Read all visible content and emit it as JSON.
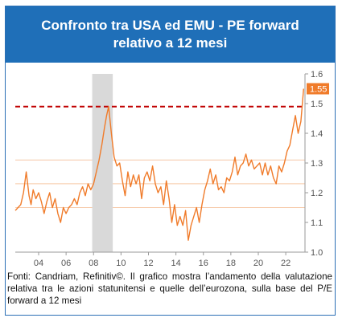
{
  "header": {
    "title": "Confronto tra USA ed EMU - PE forward relativo a 12 mesi"
  },
  "caption": "Fonti: Candriam, Refinitiv©. Il grafico mostra l’andamento della valutazione relativa tra le azioni statunitensi e quelle dell’eurozona, sulla base del P/E forward a 12 mesi",
  "colors": {
    "header_bg": "#1f6fb8",
    "line": "#f07b2a",
    "reference": "#c00000",
    "badge": "#f07b2a",
    "recession_band": "#d9d9d9",
    "bands": "#f6c9a8"
  },
  "chart_data": {
    "type": "line",
    "title": "",
    "xlabel": "",
    "ylabel": "",
    "xlim": [
      2002.3,
      2023.4
    ],
    "ylim": [
      1.0,
      1.6
    ],
    "y_ticks": [
      "1.0",
      "1.1",
      "1.2",
      "1.3",
      "1.4",
      "1.5",
      "1.6"
    ],
    "x_ticks": [
      "04",
      "06",
      "08",
      "10",
      "12",
      "14",
      "16",
      "18",
      "20",
      "22"
    ],
    "x_tick_years": [
      2004,
      2006,
      2008,
      2010,
      2012,
      2014,
      2016,
      2018,
      2020,
      2022
    ],
    "last_value_label": "1.55",
    "reference_line": {
      "value": 1.49,
      "style": "dashed"
    },
    "horizontal_bands": [
      1.15,
      1.23,
      1.31
    ],
    "shaded_period": [
      2007.9,
      2009.4
    ],
    "series": [
      {
        "x": [
          2002.3,
          2002.5,
          2002.7,
          2002.9,
          2003.1,
          2003.3,
          2003.45,
          2003.6,
          2003.8,
          2004.0,
          2004.2,
          2004.4,
          2004.6,
          2004.8,
          2005.0,
          2005.2,
          2005.4,
          2005.6,
          2005.8,
          2006.0,
          2006.2,
          2006.4,
          2006.6,
          2006.8,
          2007.0,
          2007.2,
          2007.4,
          2007.6,
          2007.8,
          2008.0,
          2008.2,
          2008.4,
          2008.6,
          2008.8,
          2008.95,
          2009.1,
          2009.3,
          2009.5,
          2009.7,
          2009.9,
          2010.1,
          2010.3,
          2010.5,
          2010.7,
          2010.9,
          2011.1,
          2011.3,
          2011.5,
          2011.7,
          2011.9,
          2012.1,
          2012.3,
          2012.5,
          2012.7,
          2012.9,
          2013.1,
          2013.3,
          2013.5,
          2013.7,
          2013.9,
          2014.1,
          2014.3,
          2014.5,
          2014.7,
          2014.9,
          2015.1,
          2015.3,
          2015.5,
          2015.7,
          2015.9,
          2016.1,
          2016.3,
          2016.5,
          2016.7,
          2016.9,
          2017.1,
          2017.3,
          2017.5,
          2017.7,
          2017.9,
          2018.1,
          2018.3,
          2018.5,
          2018.7,
          2018.9,
          2019.1,
          2019.3,
          2019.5,
          2019.7,
          2019.9,
          2020.1,
          2020.3,
          2020.5,
          2020.7,
          2020.9,
          2021.1,
          2021.3,
          2021.5,
          2021.7,
          2021.9,
          2022.1,
          2022.3,
          2022.5,
          2022.7,
          2022.9,
          2023.1,
          2023.3
        ],
        "values": [
          1.14,
          1.15,
          1.16,
          1.2,
          1.27,
          1.19,
          1.16,
          1.21,
          1.18,
          1.2,
          1.17,
          1.13,
          1.17,
          1.2,
          1.15,
          1.18,
          1.13,
          1.1,
          1.15,
          1.13,
          1.15,
          1.16,
          1.18,
          1.16,
          1.2,
          1.22,
          1.19,
          1.23,
          1.21,
          1.23,
          1.27,
          1.31,
          1.36,
          1.42,
          1.46,
          1.49,
          1.4,
          1.32,
          1.29,
          1.3,
          1.24,
          1.19,
          1.27,
          1.22,
          1.26,
          1.23,
          1.26,
          1.18,
          1.25,
          1.27,
          1.24,
          1.29,
          1.23,
          1.2,
          1.22,
          1.16,
          1.24,
          1.18,
          1.1,
          1.16,
          1.09,
          1.12,
          1.09,
          1.14,
          1.04,
          1.09,
          1.12,
          1.15,
          1.1,
          1.16,
          1.21,
          1.24,
          1.28,
          1.23,
          1.26,
          1.21,
          1.22,
          1.2,
          1.25,
          1.24,
          1.27,
          1.32,
          1.26,
          1.29,
          1.3,
          1.33,
          1.29,
          1.31,
          1.28,
          1.29,
          1.3,
          1.26,
          1.3,
          1.26,
          1.29,
          1.25,
          1.23,
          1.29,
          1.27,
          1.3,
          1.34,
          1.36,
          1.41,
          1.46,
          1.4,
          1.44,
          1.55
        ]
      }
    ]
  }
}
